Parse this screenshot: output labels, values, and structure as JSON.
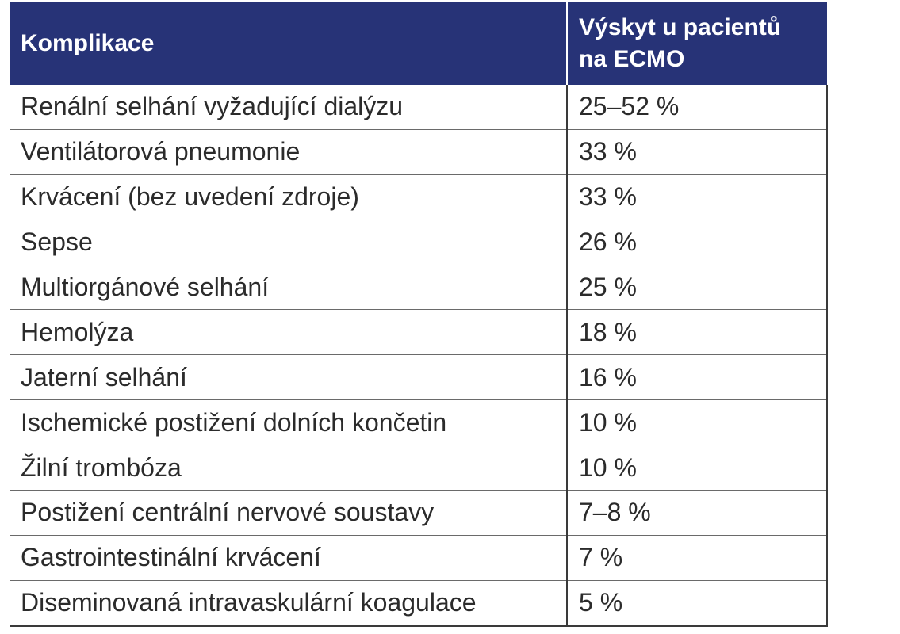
{
  "table": {
    "header_bg": "#273377",
    "columns": [
      "Komplikace",
      "Výskyt u pacientů na ECMO"
    ],
    "column_lines": [
      [
        "Výskyt u pacientů",
        "na ECMO"
      ]
    ],
    "rows": [
      {
        "complication": "Renální selhání vyžadující dialýzu",
        "incidence": "25–52 %"
      },
      {
        "complication": "Ventilátorová pneumonie",
        "incidence": "33 %"
      },
      {
        "complication": "Krvácení (bez uvedení zdroje)",
        "incidence": "33 %"
      },
      {
        "complication": "Sepse",
        "incidence": "26 %"
      },
      {
        "complication": "Multiorgánové selhání",
        "incidence": "25 %"
      },
      {
        "complication": "Hemolýza",
        "incidence": "18 %"
      },
      {
        "complication": "Jaterní selhání",
        "incidence": "16 %"
      },
      {
        "complication": "Ischemické postižení dolních končetin",
        "incidence": "10 %"
      },
      {
        "complication": "Žilní trombóza",
        "incidence": "10 %"
      },
      {
        "complication": "Postižení centrální nervové soustavy",
        "incidence": "7–8 %"
      },
      {
        "complication": "Gastrointestinální krvácení",
        "incidence": "7 %"
      },
      {
        "complication": "Diseminovaná intravaskulární koagulace",
        "incidence": "5 %"
      }
    ]
  }
}
